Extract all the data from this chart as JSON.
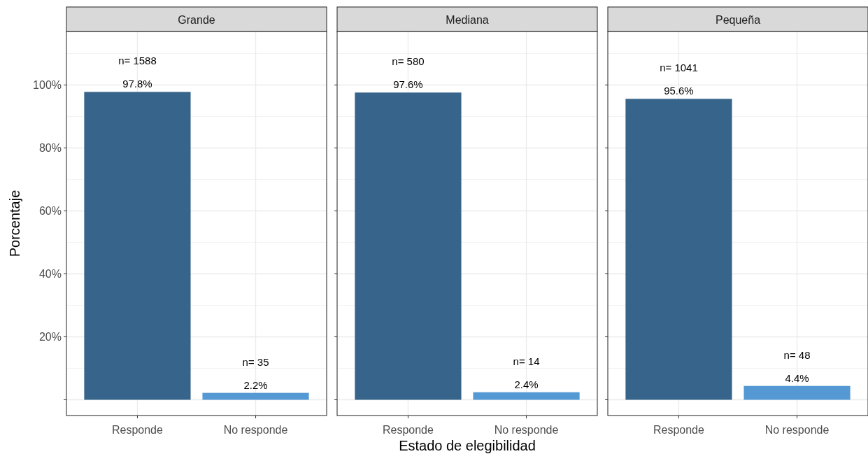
{
  "chart_data": [
    {
      "type": "bar",
      "title": "Grande",
      "ylabel": "Porcentaje",
      "categories": [
        "Responde",
        "No responde"
      ],
      "values": [
        97.8,
        2.2
      ],
      "colors": [
        "#36648b",
        "#5499d3"
      ],
      "value_labels": [
        "97.8%",
        "2.2%"
      ],
      "annotations": [
        {
          "text": "n= 1588",
          "x": "Responde",
          "y": 97.8
        },
        {
          "text": "n= 35",
          "x": "No responde",
          "y": 2.2
        }
      ],
      "ylim": [
        -5,
        117
      ],
      "yticks": [
        {
          "value": 0,
          "label": null
        },
        {
          "value": 20,
          "label": "20%"
        },
        {
          "value": 40,
          "label": "40%"
        },
        {
          "value": 60,
          "label": "60%"
        },
        {
          "value": 80,
          "label": "80%"
        },
        {
          "value": 100,
          "label": "100%"
        }
      ],
      "grid": true
    },
    {
      "type": "bar",
      "title": "Mediana",
      "xlabel": "Estado de elegibilidad",
      "categories": [
        "Responde",
        "No responde"
      ],
      "values": [
        97.6,
        2.4
      ],
      "colors": [
        "#36648b",
        "#5499d3"
      ],
      "value_labels": [
        "97.6%",
        "2.4%"
      ],
      "annotations": [
        {
          "text": "n= 580",
          "x": "Responde",
          "y": 97.6
        },
        {
          "text": "n= 14",
          "x": "No responde",
          "y": 2.4
        }
      ],
      "ylim": [
        -5,
        117
      ],
      "yticks": [
        {
          "value": 0,
          "label": null
        },
        {
          "value": 20,
          "label": null
        },
        {
          "value": 40,
          "label": null
        },
        {
          "value": 60,
          "label": null
        },
        {
          "value": 80,
          "label": null
        },
        {
          "value": 100,
          "label": null
        }
      ],
      "grid": true,
      "tick_labels": "x"
    },
    {
      "type": "bar",
      "title": "Pequeña",
      "categories": [
        "Responde",
        "No responde"
      ],
      "values": [
        95.6,
        4.4
      ],
      "colors": [
        "#36648b",
        "#5499d3"
      ],
      "value_labels": [
        "95.6%",
        "4.4%"
      ],
      "annotations": [
        {
          "text": "n= 1041",
          "x": "Responde",
          "y": 95.6
        },
        {
          "text": "n= 48",
          "x": "No responde",
          "y": 4.4
        }
      ],
      "ylim": [
        -5,
        117
      ],
      "yticks": [
        {
          "value": 0,
          "label": null
        },
        {
          "value": 20,
          "label": null
        },
        {
          "value": 40,
          "label": null
        },
        {
          "value": 60,
          "label": null
        },
        {
          "value": 80,
          "label": null
        },
        {
          "value": 100,
          "label": null
        }
      ],
      "grid": true,
      "tick_labels": "x"
    }
  ]
}
